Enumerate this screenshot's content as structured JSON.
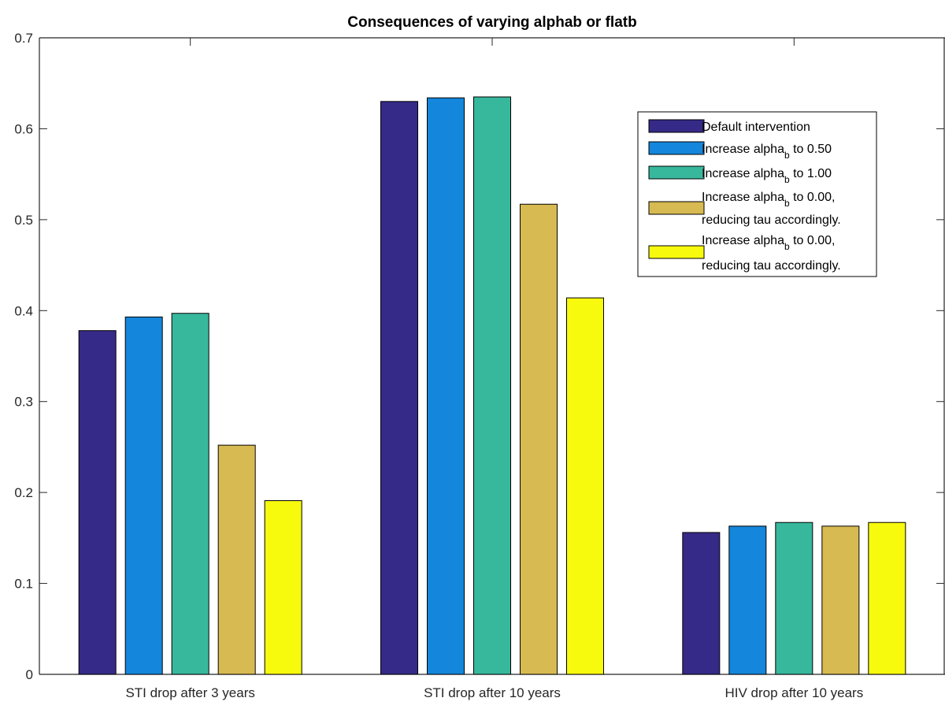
{
  "chart_data": {
    "type": "bar",
    "title": "Consequences of varying alphab or flatb",
    "xlabel": "",
    "ylabel": "",
    "ylim": [
      0,
      0.7
    ],
    "yticks": [
      "0",
      "0.1",
      "0.2",
      "0.3",
      "0.4",
      "0.5",
      "0.6",
      "0.7"
    ],
    "categories": [
      "STI drop after 3 years",
      "STI drop after 10 years",
      "HIV drop after 10 years"
    ],
    "grid": false,
    "legend_position": "top-right",
    "series": [
      {
        "name": "Default intervention",
        "color": "#352a87",
        "values": [
          0.378,
          0.63,
          0.156
        ]
      },
      {
        "name": "Increase alpha_b to 0.50",
        "color": "#1486db",
        "values": [
          0.393,
          0.634,
          0.163
        ]
      },
      {
        "name": "Increase alpha_b to 1.00",
        "color": "#37b89d",
        "values": [
          0.397,
          0.635,
          0.167
        ]
      },
      {
        "name": "Increase alpha_b to 0.00, reducing tau accordingly.",
        "color": "#d7ba51",
        "values": [
          0.252,
          0.517,
          0.163
        ]
      },
      {
        "name": "Increase alpha_b to 0.00, reducing tau accordingly.",
        "color": "#f8fa0d",
        "values": [
          0.191,
          0.414,
          0.167
        ]
      }
    ],
    "legend": [
      {
        "lines": [
          {
            "parts": [
              {
                "t": "Default intervention"
              }
            ]
          }
        ]
      },
      {
        "lines": [
          {
            "parts": [
              {
                "t": "Increase alpha"
              },
              {
                "t": "b",
                "sub": true
              },
              {
                "t": " to 0.50"
              }
            ]
          }
        ]
      },
      {
        "lines": [
          {
            "parts": [
              {
                "t": "Increase alpha"
              },
              {
                "t": "b",
                "sub": true
              },
              {
                "t": " to 1.00"
              }
            ]
          }
        ]
      },
      {
        "lines": [
          {
            "parts": [
              {
                "t": "Increase alpha"
              },
              {
                "t": "b",
                "sub": true
              },
              {
                "t": " to 0.00,"
              }
            ]
          },
          {
            "parts": [
              {
                "t": "reducing tau accordingly."
              }
            ]
          }
        ]
      },
      {
        "lines": [
          {
            "parts": [
              {
                "t": "Increase alpha"
              },
              {
                "t": "b",
                "sub": true
              },
              {
                "t": " to 0.00,"
              }
            ]
          },
          {
            "parts": [
              {
                "t": "reducing tau accordingly."
              }
            ]
          }
        ]
      }
    ]
  }
}
